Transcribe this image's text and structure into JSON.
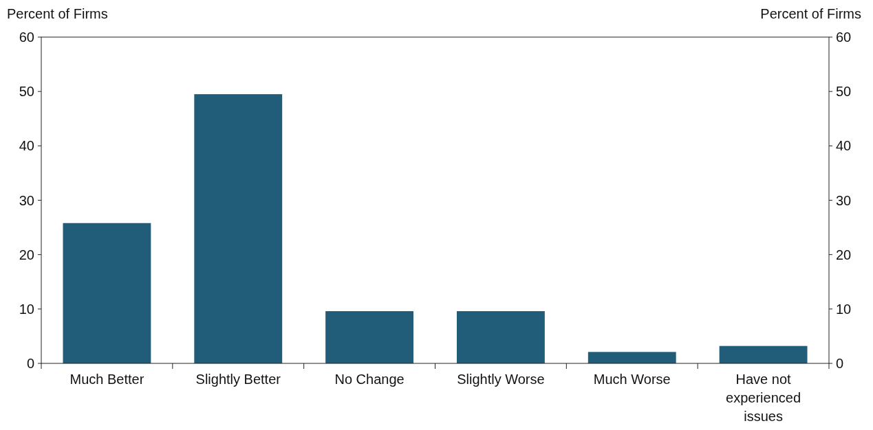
{
  "chart_data": {
    "type": "bar",
    "ylabel": "Percent of Firms",
    "y2label": "Percent of Firms",
    "categories": [
      "Much Better",
      "Slightly Better",
      "No Change",
      "Slightly Worse",
      "Much Worse",
      "Have not experienced issues"
    ],
    "values": [
      25.8,
      49.5,
      9.6,
      9.6,
      2.1,
      3.2
    ],
    "color": "#215d78",
    "ylim": [
      0,
      60
    ],
    "yticks": [
      0,
      10,
      20,
      30,
      40,
      50,
      60
    ],
    "y2lim": [
      0,
      60
    ],
    "y2ticks": [
      0,
      10,
      20,
      30,
      40,
      50,
      60
    ],
    "grid": false
  }
}
